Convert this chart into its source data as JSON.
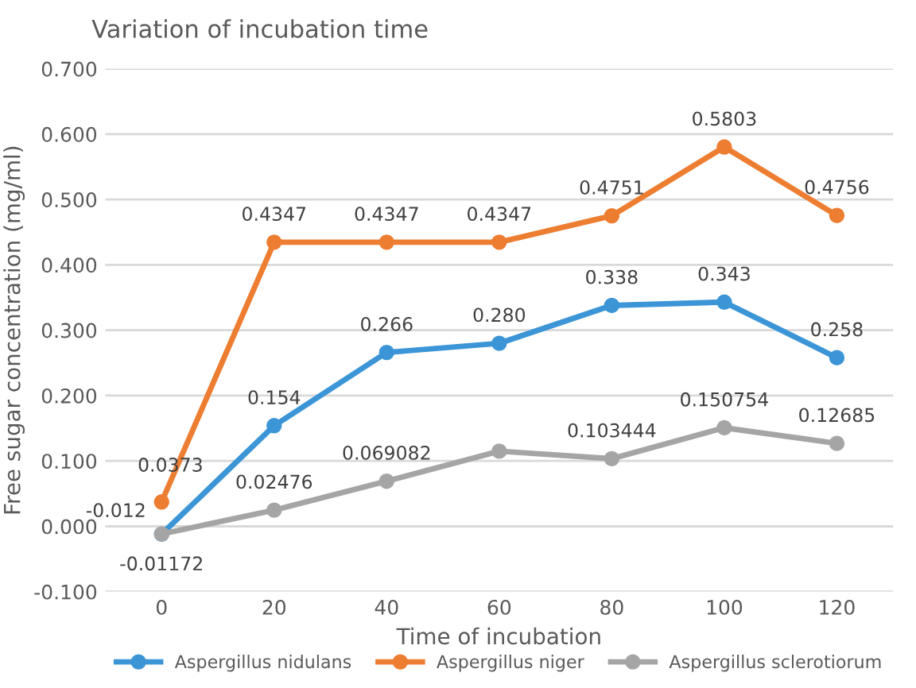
{
  "chart_data": {
    "type": "line",
    "title": "Variation of incubation time",
    "xlabel": "Time of incubation",
    "ylabel": "Free sugar concentration (mg/ml)",
    "categories": [
      "0",
      "20",
      "40",
      "60",
      "80",
      "100",
      "120"
    ],
    "series": [
      {
        "name": "Aspergillus nidulans",
        "color": "#3b95d6",
        "values": [
          -0.012,
          0.154,
          0.266,
          0.28,
          0.338,
          0.343,
          0.258
        ],
        "value_labels": [
          "-0.012",
          "0.154",
          "0.266",
          "0.280",
          "0.338",
          "0.343",
          "0.258"
        ]
      },
      {
        "name": "Aspergillus niger",
        "color": "#ed7d31",
        "values": [
          0.0373,
          0.4347,
          0.4347,
          0.4347,
          0.4751,
          0.5803,
          0.4756
        ],
        "value_labels": [
          "0.0373",
          "0.4347",
          "0.4347",
          "0.4347",
          "0.4751",
          "0.5803",
          "0.4756"
        ]
      },
      {
        "name": "Aspergillus sclerotiorum",
        "color": "#a5a5a5",
        "values": [
          -0.01172,
          0.02476,
          0.069082,
          0.115,
          0.103444,
          0.150754,
          0.12685
        ],
        "value_labels": [
          "-0.01172",
          "0.02476",
          "0.069082",
          null,
          "0.103444",
          "0.150754",
          "0.12685"
        ]
      }
    ],
    "ylim": [
      -0.1,
      0.7
    ],
    "yticks": [
      {
        "value": -0.1,
        "label": "-0.100"
      },
      {
        "value": 0,
        "label": "0.000"
      },
      {
        "value": 0.1,
        "label": "0.100"
      },
      {
        "value": 0.2,
        "label": "0.200"
      },
      {
        "value": 0.3,
        "label": "0.300"
      },
      {
        "value": 0.4,
        "label": "0.400"
      },
      {
        "value": 0.5,
        "label": "0.500"
      },
      {
        "value": 0.6,
        "label": "0.600"
      },
      {
        "value": 0.7,
        "label": "0.700"
      }
    ],
    "grid": "y",
    "legend": "bottom",
    "marker": "circle",
    "line_style": "solid"
  }
}
